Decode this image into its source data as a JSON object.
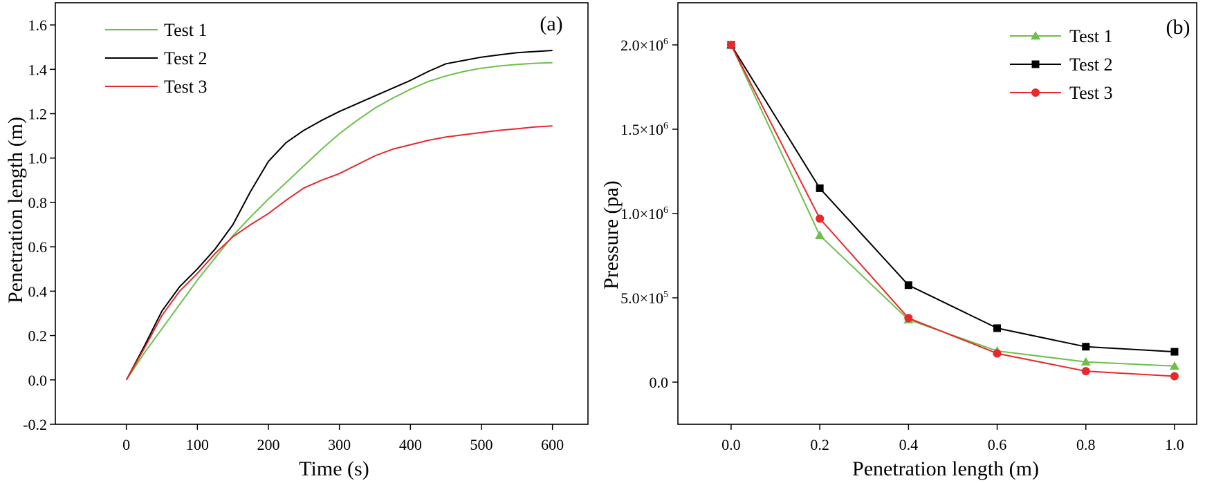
{
  "chart_data": [
    {
      "panel": "(a)",
      "type": "line",
      "xlabel": "Time (s)",
      "ylabel": "Penetration length (m)",
      "xlim": [
        -100,
        650
      ],
      "ylim": [
        -0.2,
        1.7
      ],
      "xticks": [
        0,
        100,
        200,
        300,
        400,
        500,
        600
      ],
      "xtick_labels": [
        "0",
        "100",
        "200",
        "300",
        "400",
        "500",
        "600"
      ],
      "yticks": [
        -0.2,
        0.0,
        0.2,
        0.4,
        0.6,
        0.8,
        1.0,
        1.2,
        1.4,
        1.6
      ],
      "ytick_labels": [
        "-0.2",
        "0.0",
        "0.2",
        "0.4",
        "0.6",
        "0.8",
        "1.0",
        "1.2",
        "1.4",
        "1.6"
      ],
      "legend_position": "top-left",
      "series": [
        {
          "name": "Test 1",
          "color": "#6cc04a",
          "x": [
            0,
            25,
            50,
            75,
            100,
            125,
            150,
            175,
            200,
            225,
            250,
            275,
            300,
            325,
            350,
            375,
            400,
            425,
            450,
            475,
            500,
            525,
            550,
            575,
            600
          ],
          "y": [
            0,
            0.12,
            0.23,
            0.34,
            0.45,
            0.55,
            0.65,
            0.735,
            0.815,
            0.89,
            0.965,
            1.04,
            1.11,
            1.17,
            1.225,
            1.27,
            1.31,
            1.345,
            1.37,
            1.39,
            1.405,
            1.415,
            1.422,
            1.427,
            1.43
          ]
        },
        {
          "name": "Test 2",
          "color": "#000000",
          "x": [
            0,
            25,
            50,
            75,
            100,
            125,
            150,
            175,
            200,
            225,
            250,
            275,
            300,
            325,
            350,
            375,
            400,
            425,
            450,
            475,
            500,
            525,
            550,
            575,
            600
          ],
          "y": [
            0,
            0.15,
            0.31,
            0.42,
            0.5,
            0.59,
            0.7,
            0.85,
            0.985,
            1.07,
            1.125,
            1.17,
            1.21,
            1.245,
            1.28,
            1.315,
            1.35,
            1.39,
            1.425,
            1.44,
            1.455,
            1.465,
            1.475,
            1.48,
            1.485
          ]
        },
        {
          "name": "Test 3",
          "color": "#e8282c",
          "x": [
            0,
            25,
            50,
            75,
            100,
            125,
            150,
            175,
            200,
            225,
            250,
            275,
            300,
            325,
            350,
            375,
            400,
            425,
            450,
            475,
            500,
            525,
            550,
            575,
            600
          ],
          "y": [
            0,
            0.14,
            0.29,
            0.4,
            0.48,
            0.57,
            0.645,
            0.7,
            0.75,
            0.81,
            0.865,
            0.9,
            0.93,
            0.97,
            1.01,
            1.04,
            1.06,
            1.08,
            1.095,
            1.105,
            1.115,
            1.125,
            1.132,
            1.14,
            1.145
          ]
        }
      ]
    },
    {
      "panel": "(b)",
      "type": "line",
      "xlabel": "Penetration length (m)",
      "ylabel": "Pressure (pa)",
      "xlim": [
        -0.12,
        1.05
      ],
      "ylim": [
        -250000,
        2250000
      ],
      "xticks": [
        0.0,
        0.2,
        0.4,
        0.6,
        0.8,
        1.0
      ],
      "xtick_labels": [
        "0.0",
        "0.2",
        "0.4",
        "0.6",
        "0.8",
        "1.0"
      ],
      "yticks": [
        0,
        500000,
        1000000,
        1500000,
        2000000
      ],
      "ytick_labels": [
        {
          "base": "0.0",
          "exp": ""
        },
        {
          "base": "5.0×10",
          "exp": "5"
        },
        {
          "base": "1.0×10",
          "exp": "6"
        },
        {
          "base": "1.5×10",
          "exp": "6"
        },
        {
          "base": "2.0×10",
          "exp": "6"
        }
      ],
      "legend_position": "top-right",
      "series": [
        {
          "name": "Test 1",
          "color": "#6cc04a",
          "marker": "triangle",
          "x": [
            0.0,
            0.2,
            0.4,
            0.6,
            0.8,
            1.0
          ],
          "y": [
            2000000,
            870000,
            370000,
            185000,
            120000,
            95000
          ]
        },
        {
          "name": "Test 2",
          "color": "#000000",
          "marker": "square",
          "x": [
            0.0,
            0.2,
            0.4,
            0.6,
            0.8,
            1.0
          ],
          "y": [
            2000000,
            1150000,
            575000,
            320000,
            210000,
            180000
          ]
        },
        {
          "name": "Test 3",
          "color": "#e8282c",
          "marker": "circle",
          "x": [
            0.0,
            0.2,
            0.4,
            0.6,
            0.8,
            1.0
          ],
          "y": [
            2000000,
            970000,
            380000,
            170000,
            65000,
            35000
          ]
        }
      ]
    }
  ]
}
